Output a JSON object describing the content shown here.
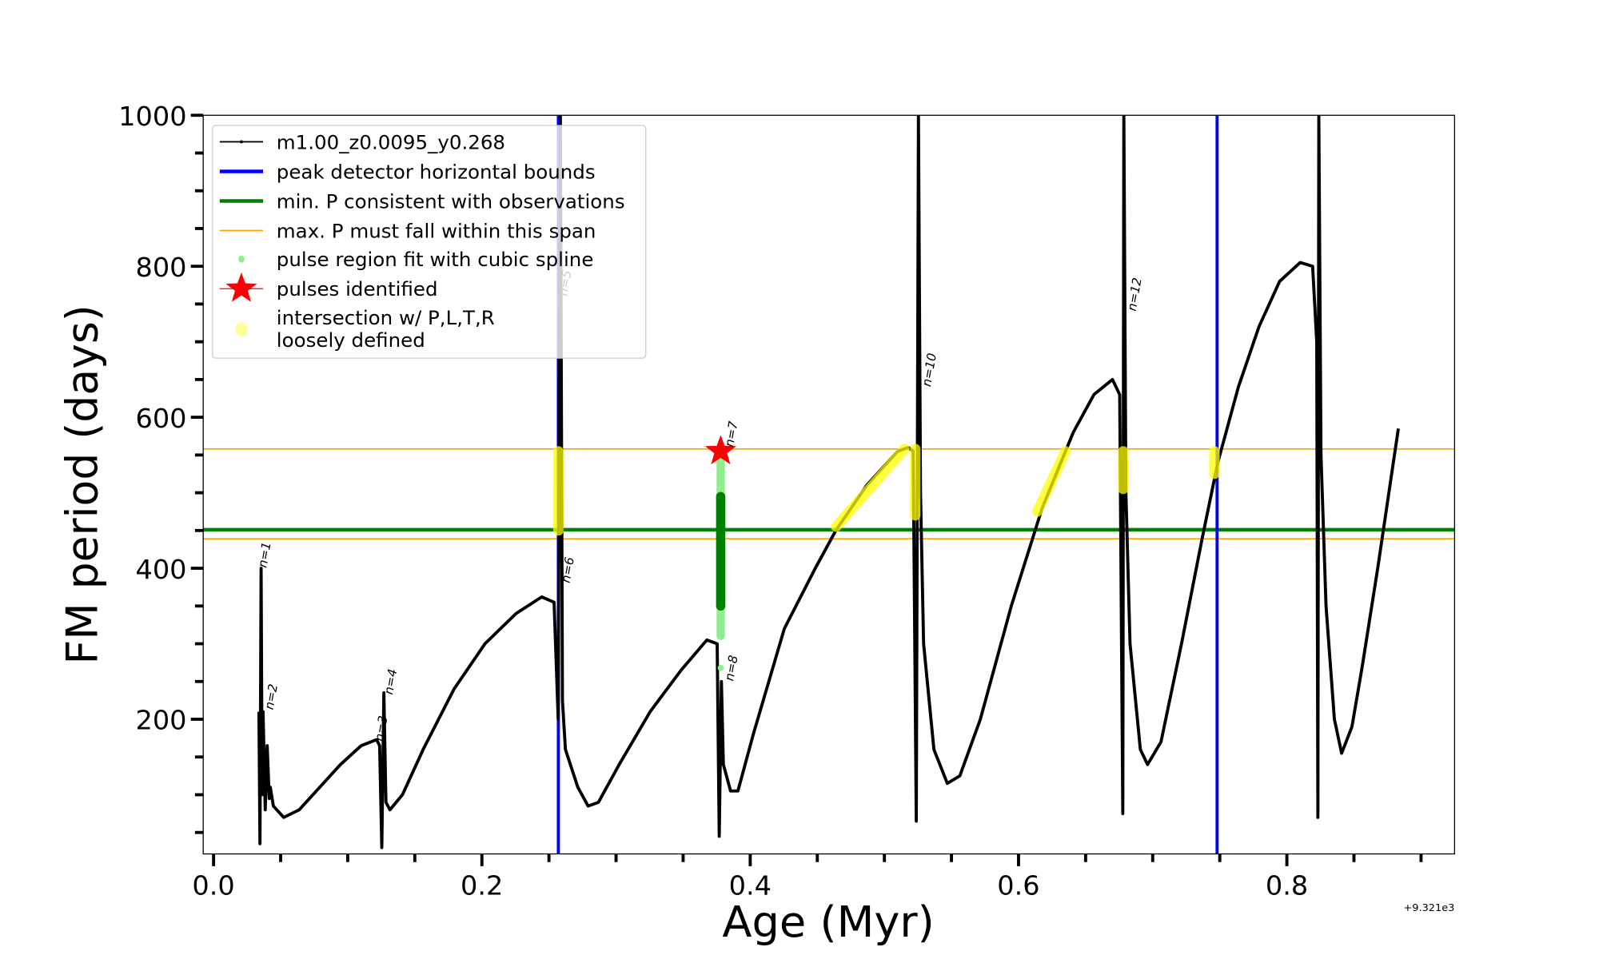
{
  "chart_data": {
    "type": "line",
    "title": "",
    "xlabel": "Age (Myr)",
    "ylabel": "FM period (days)",
    "x_offset_text": "+9.321e3",
    "xlim": [
      -0.0077,
      0.925
    ],
    "ylim": [
      21.6,
      1000
    ],
    "xticks": [
      0.0,
      0.2,
      0.4,
      0.6,
      0.8
    ],
    "xtick_labels": [
      "0.0",
      "0.2",
      "0.4",
      "0.6",
      "0.8"
    ],
    "yticks": [
      200,
      400,
      600,
      800,
      1000
    ],
    "ytick_labels": [
      "200",
      "400",
      "600",
      "800",
      "1000"
    ],
    "grid": false,
    "legend_placement": "upper-left",
    "legend": [
      {
        "label": "m1.00_z0.0095_y0.268",
        "kind": "line-dot",
        "color": "#000000"
      },
      {
        "label": "peak detector horizontal bounds",
        "kind": "line",
        "color": "#0000ff"
      },
      {
        "label": "min. P consistent with observations",
        "kind": "line",
        "color": "#008000"
      },
      {
        "label": "max. P must fall within this span",
        "kind": "thin-line",
        "color": "#ffa500"
      },
      {
        "label": "pulse region fit with cubic spline",
        "kind": "dot",
        "color": "#90ee90"
      },
      {
        "label": "pulses identified",
        "kind": "star",
        "color": "#ff0000"
      },
      {
        "label": "intersection w/ P,L,T,R",
        "label2": "loosely defined",
        "kind": "dot",
        "color": "#ffff99"
      }
    ],
    "series": [
      {
        "name": "m1.00_z0.0095_y0.268",
        "color": "#000000",
        "x": [
          0.0338,
          0.0346,
          0.0354,
          0.0362,
          0.0369,
          0.0385,
          0.04,
          0.0415,
          0.0423,
          0.0446,
          0.0523,
          0.0638,
          0.0792,
          0.0946,
          0.11,
          0.1215,
          0.1238,
          0.1254,
          0.1269,
          0.1285,
          0.1315,
          0.1408,
          0.1562,
          0.1792,
          0.2023,
          0.2254,
          0.2446,
          0.2538,
          0.2569,
          0.2585,
          0.26,
          0.2623,
          0.2715,
          0.2792,
          0.2869,
          0.3023,
          0.3254,
          0.3485,
          0.3677,
          0.3754,
          0.3769,
          0.3785,
          0.38,
          0.3854,
          0.3908,
          0.4023,
          0.4254,
          0.4485,
          0.4638,
          0.4869,
          0.51,
          0.5177,
          0.5215,
          0.5238,
          0.5254,
          0.5269,
          0.5292,
          0.5369,
          0.5469,
          0.5562,
          0.5715,
          0.5946,
          0.6177,
          0.6408,
          0.6562,
          0.67,
          0.6754,
          0.6777,
          0.6785,
          0.68,
          0.6831,
          0.6908,
          0.6962,
          0.7062,
          0.7215,
          0.7369,
          0.7485,
          0.7638,
          0.7792,
          0.7946,
          0.81,
          0.8192,
          0.8223,
          0.8231,
          0.8238,
          0.8254,
          0.8292,
          0.8354,
          0.8408,
          0.8485,
          0.8562,
          0.8677,
          0.8831
        ],
        "y": [
          210,
          35,
          400,
          100,
          210,
          80,
          165,
          95,
          110,
          85,
          70,
          80,
          110,
          140,
          165,
          173,
          165,
          30,
          235,
          90,
          80,
          100,
          160,
          240,
          300,
          340,
          362,
          355,
          200,
          1000,
          225,
          160,
          110,
          85,
          90,
          140,
          210,
          265,
          305,
          300,
          45,
          250,
          140,
          105,
          105,
          180,
          320,
          400,
          450,
          510,
          555,
          560,
          555,
          65,
          1000,
          500,
          300,
          160,
          115,
          125,
          200,
          350,
          480,
          580,
          630,
          650,
          630,
          75,
          1000,
          500,
          300,
          160,
          140,
          170,
          300,
          440,
          540,
          640,
          720,
          780,
          805,
          800,
          700,
          70,
          1000,
          550,
          350,
          200,
          155,
          190,
          270,
          400,
          585
        ]
      }
    ],
    "vertical_lines": [
      {
        "x": 0.257,
        "color": "#0000ff",
        "label": "peak detector horizontal bounds"
      },
      {
        "x": 0.748,
        "color": "#0000ff",
        "label": "peak detector horizontal bounds"
      }
    ],
    "horizontal_lines": [
      {
        "y": 451,
        "color": "#008000",
        "label": "min. P consistent with observations"
      },
      {
        "y": 558,
        "color": "#ffa500",
        "label": "max. P must fall within this span"
      },
      {
        "y": 439,
        "color": "#ffa500",
        "label": "max. P must fall within this span"
      }
    ],
    "intersection_regions": [
      {
        "x": [
          0.257,
          0.257
        ],
        "y": [
          450,
          555
        ]
      },
      {
        "x": [
          0.464,
          0.515
        ],
        "y": [
          455,
          558
        ]
      },
      {
        "x": [
          0.523,
          0.523
        ],
        "y": [
          470,
          558
        ]
      },
      {
        "x": [
          0.614,
          0.635
        ],
        "y": [
          475,
          555
        ]
      },
      {
        "x": [
          0.678,
          0.678
        ],
        "y": [
          505,
          555
        ]
      },
      {
        "x": [
          0.746,
          0.746
        ],
        "y": [
          525,
          555
        ]
      }
    ],
    "spline_fit_region": {
      "x": 0.378,
      "y": [
        310,
        555
      ],
      "dark_y": [
        350,
        495
      ],
      "extra_point": [
        0.378,
        268
      ]
    },
    "pulses_identified": [
      {
        "x": 0.378,
        "y": 555
      }
    ],
    "annotations": [
      {
        "text": "n=1",
        "x": 0.037,
        "y": 400
      },
      {
        "text": "n=2",
        "x": 0.042,
        "y": 212
      },
      {
        "text": "n=3",
        "x": 0.124,
        "y": 170
      },
      {
        "text": "n=4",
        "x": 0.131,
        "y": 232
      },
      {
        "text": "n=5",
        "x": 0.261,
        "y": 760,
        "faint": true
      },
      {
        "text": "n=6",
        "x": 0.263,
        "y": 380
      },
      {
        "text": "n=7",
        "x": 0.385,
        "y": 560
      },
      {
        "text": "n=8",
        "x": 0.385,
        "y": 250
      },
      {
        "text": "n=10",
        "x": 0.532,
        "y": 640
      },
      {
        "text": "n=12",
        "x": 0.685,
        "y": 740
      }
    ]
  }
}
